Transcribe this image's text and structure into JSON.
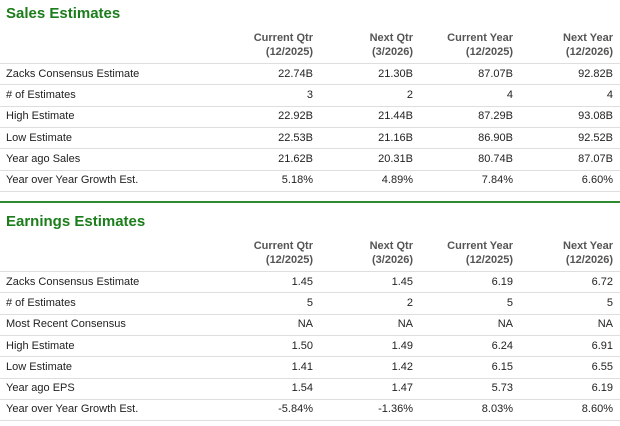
{
  "sections": [
    {
      "title": "Sales Estimates",
      "columns": [
        [
          "Current Qtr",
          "(12/2025)"
        ],
        [
          "Next Qtr",
          "(3/2026)"
        ],
        [
          "Current Year",
          "(12/2025)"
        ],
        [
          "Next Year",
          "(12/2026)"
        ]
      ],
      "rows": [
        [
          "Zacks Consensus Estimate",
          "22.74B",
          "21.30B",
          "87.07B",
          "92.82B"
        ],
        [
          "# of Estimates",
          "3",
          "2",
          "4",
          "4"
        ],
        [
          "High Estimate",
          "22.92B",
          "21.44B",
          "87.29B",
          "93.08B"
        ],
        [
          "Low Estimate",
          "22.53B",
          "21.16B",
          "86.90B",
          "92.52B"
        ],
        [
          "Year ago Sales",
          "21.62B",
          "20.31B",
          "80.74B",
          "87.07B"
        ],
        [
          "Year over Year Growth Est.",
          "5.18%",
          "4.89%",
          "7.84%",
          "6.60%"
        ]
      ]
    },
    {
      "title": "Earnings Estimates",
      "columns": [
        [
          "Current Qtr",
          "(12/2025)"
        ],
        [
          "Next Qtr",
          "(3/2026)"
        ],
        [
          "Current Year",
          "(12/2025)"
        ],
        [
          "Next Year",
          "(12/2026)"
        ]
      ],
      "rows": [
        [
          "Zacks Consensus Estimate",
          "1.45",
          "1.45",
          "6.19",
          "6.72"
        ],
        [
          "# of Estimates",
          "5",
          "2",
          "5",
          "5"
        ],
        [
          "Most Recent Consensus",
          "NA",
          "NA",
          "NA",
          "NA"
        ],
        [
          "High Estimate",
          "1.50",
          "1.49",
          "6.24",
          "6.91"
        ],
        [
          "Low Estimate",
          "1.41",
          "1.42",
          "6.15",
          "6.55"
        ],
        [
          "Year ago EPS",
          "1.54",
          "1.47",
          "5.73",
          "6.19"
        ],
        [
          "Year over Year Growth Est.",
          "-5.84%",
          "-1.36%",
          "8.03%",
          "8.60%"
        ]
      ]
    }
  ]
}
